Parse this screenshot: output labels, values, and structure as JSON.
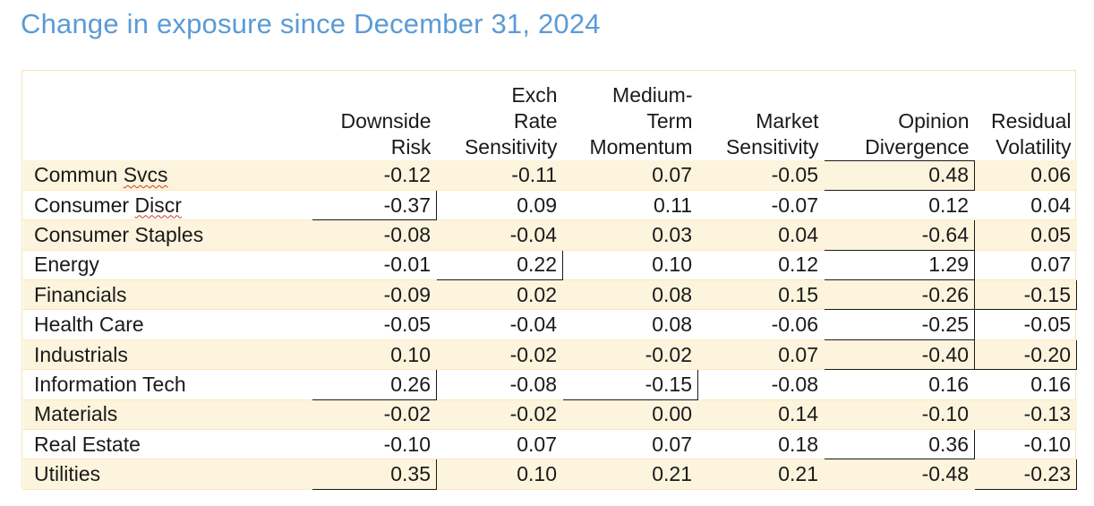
{
  "title": "Change in exposure since December 31, 2024",
  "columns": [
    {
      "lines": [
        "Downside",
        "Risk"
      ]
    },
    {
      "lines": [
        "Exch",
        "Rate",
        "Sensitivity"
      ]
    },
    {
      "lines": [
        "Medium-",
        "Term",
        "Momentum"
      ]
    },
    {
      "lines": [
        "Market",
        "Sensitivity"
      ]
    },
    {
      "lines": [
        "Opinion",
        "Divergence"
      ]
    },
    {
      "lines": [
        "Residual",
        "Volatility"
      ]
    }
  ],
  "rows": [
    {
      "sector": "Commun Svcs",
      "spellcheck_word": "Svcs",
      "shaded": true,
      "values": [
        "-0.12",
        "-0.11",
        "0.07",
        "-0.05",
        "0.48",
        "0.06"
      ],
      "boxed": [
        4
      ]
    },
    {
      "sector": "Consumer Discr",
      "spellcheck_word": "Discr",
      "shaded": false,
      "values": [
        "-0.37",
        "0.09",
        "0.11",
        "-0.07",
        "0.12",
        "0.04"
      ],
      "boxed": [
        0
      ]
    },
    {
      "sector": "Consumer Staples",
      "shaded": true,
      "values": [
        "-0.08",
        "-0.04",
        "0.03",
        "0.04",
        "-0.64",
        "0.05"
      ],
      "boxed": [
        4
      ]
    },
    {
      "sector": "Energy",
      "shaded": false,
      "values": [
        "-0.01",
        "0.22",
        "0.10",
        "0.12",
        "1.29",
        "0.07"
      ],
      "boxed": [
        1,
        4
      ]
    },
    {
      "sector": "Financials",
      "shaded": true,
      "values": [
        "-0.09",
        "0.02",
        "0.08",
        "0.15",
        "-0.26",
        "-0.15"
      ],
      "boxed": [
        4,
        5
      ]
    },
    {
      "sector": "Health Care",
      "shaded": false,
      "values": [
        "-0.05",
        "-0.04",
        "0.08",
        "-0.06",
        "-0.25",
        "-0.05"
      ],
      "boxed": [
        4
      ]
    },
    {
      "sector": "Industrials",
      "shaded": true,
      "values": [
        "0.10",
        "-0.02",
        "-0.02",
        "0.07",
        "-0.40",
        "-0.20"
      ],
      "boxed": [
        4,
        5
      ]
    },
    {
      "sector": "Information Tech",
      "shaded": false,
      "values": [
        "0.26",
        "-0.08",
        "-0.15",
        "-0.08",
        "0.16",
        "0.16"
      ],
      "boxed": [
        0,
        2
      ]
    },
    {
      "sector": "Materials",
      "shaded": true,
      "values": [
        "-0.02",
        "-0.02",
        "0.00",
        "0.14",
        "-0.10",
        "-0.13"
      ],
      "boxed": []
    },
    {
      "sector": "Real Estate",
      "shaded": false,
      "values": [
        "-0.10",
        "0.07",
        "0.07",
        "0.18",
        "0.36",
        "-0.10"
      ],
      "boxed": [
        4
      ]
    },
    {
      "sector": "Utilities",
      "shaded": true,
      "values": [
        "0.35",
        "0.10",
        "0.21",
        "0.21",
        "-0.48",
        "-0.23"
      ],
      "boxed": [
        0,
        5
      ]
    }
  ]
}
